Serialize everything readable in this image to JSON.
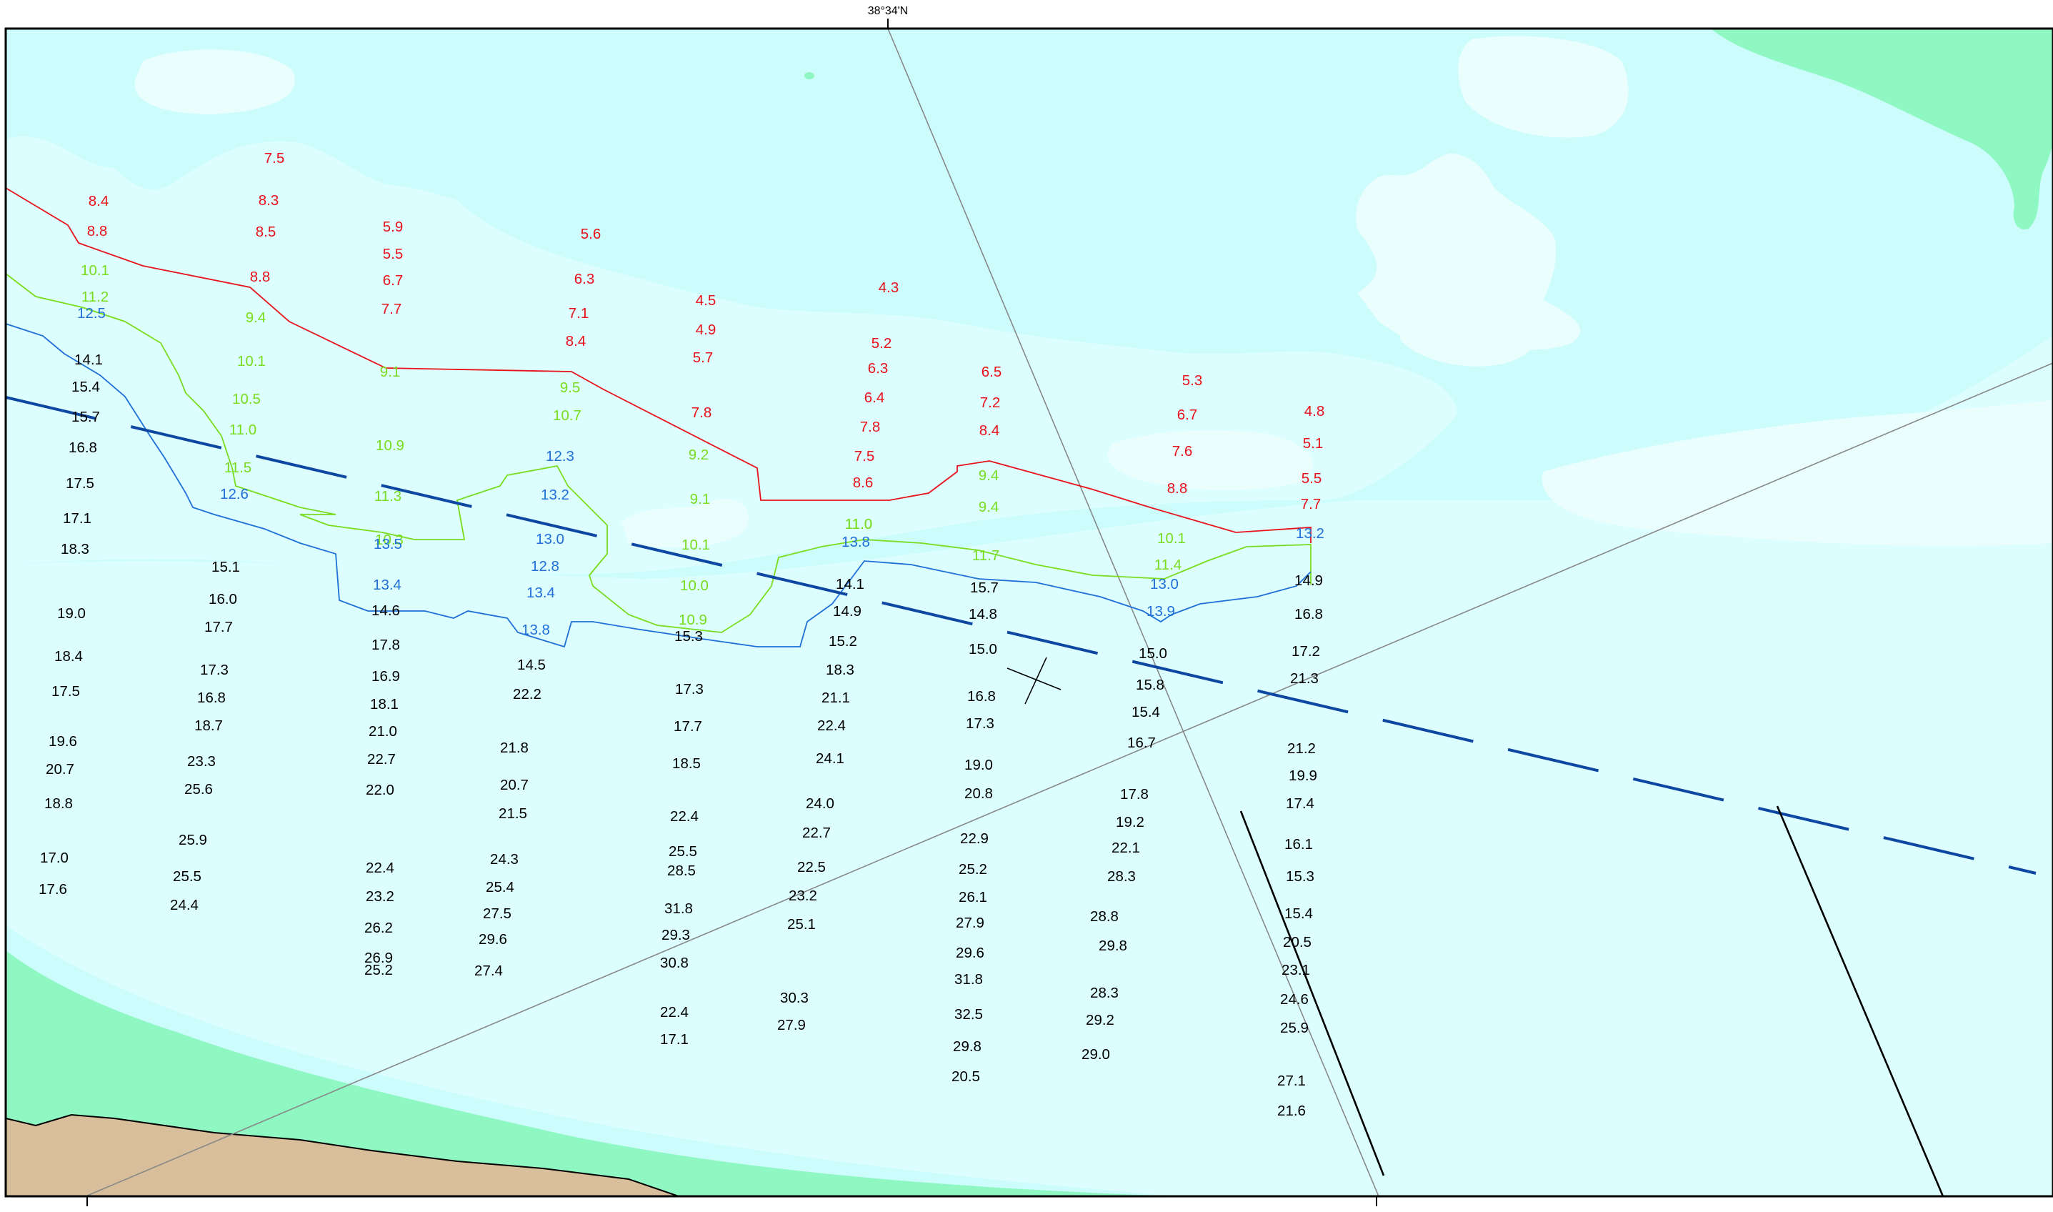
{
  "map": {
    "graticule_top_label": "38°34'N",
    "colors": {
      "deep_water": "#ccfcfc",
      "shallow_water": "#dcfefe",
      "pale_patch": "#eafefe",
      "land_green": "#8ef7c2",
      "land_tan": "#d8be9a",
      "depth_red": "#e8121a",
      "depth_green": "#7adc1e",
      "depth_blue": "#1f6fd8",
      "depth_black": "#000000",
      "route_line": "#0d47a1",
      "grid_line": "#888888"
    },
    "soundings": [
      {
        "t": "7.5",
        "c": "red"
      },
      {
        "t": "8.4",
        "c": "red"
      },
      {
        "t": "8.3",
        "c": "red"
      },
      {
        "t": "8.8",
        "c": "red"
      },
      {
        "t": "8.5",
        "c": "red"
      },
      {
        "t": "5.9",
        "c": "red"
      },
      {
        "t": "5.6",
        "c": "red"
      },
      {
        "t": "5.5",
        "c": "red"
      },
      {
        "t": "8.8",
        "c": "red"
      },
      {
        "t": "6.7",
        "c": "red"
      },
      {
        "t": "6.3",
        "c": "red"
      },
      {
        "t": "4.3",
        "c": "red"
      },
      {
        "t": "4.5",
        "c": "red"
      },
      {
        "t": "7.7",
        "c": "red"
      },
      {
        "t": "7.1",
        "c": "red"
      },
      {
        "t": "4.9",
        "c": "red"
      },
      {
        "t": "8.4",
        "c": "red"
      },
      {
        "t": "5.2",
        "c": "red"
      },
      {
        "t": "5.7",
        "c": "red"
      },
      {
        "t": "6.3",
        "c": "red"
      },
      {
        "t": "6.5",
        "c": "red"
      },
      {
        "t": "5.3",
        "c": "red"
      },
      {
        "t": "6.4",
        "c": "red"
      },
      {
        "t": "7.2",
        "c": "red"
      },
      {
        "t": "4.8",
        "c": "red"
      },
      {
        "t": "7.8",
        "c": "red"
      },
      {
        "t": "6.7",
        "c": "red"
      },
      {
        "t": "7.8",
        "c": "red"
      },
      {
        "t": "8.4",
        "c": "red"
      },
      {
        "t": "5.1",
        "c": "red"
      },
      {
        "t": "7.5",
        "c": "red"
      },
      {
        "t": "7.6",
        "c": "red"
      },
      {
        "t": "8.6",
        "c": "red"
      },
      {
        "t": "5.5",
        "c": "red"
      },
      {
        "t": "8.8",
        "c": "red"
      },
      {
        "t": "7.7",
        "c": "red"
      },
      {
        "t": "10.1",
        "c": "green"
      },
      {
        "t": "11.2",
        "c": "green"
      },
      {
        "t": "9.4",
        "c": "green"
      },
      {
        "t": "10.1",
        "c": "green"
      },
      {
        "t": "9.1",
        "c": "green"
      },
      {
        "t": "9.5",
        "c": "green"
      },
      {
        "t": "10.5",
        "c": "green"
      },
      {
        "t": "10.7",
        "c": "green"
      },
      {
        "t": "9.4",
        "c": "green"
      },
      {
        "t": "11.0",
        "c": "green"
      },
      {
        "t": "10.9",
        "c": "green"
      },
      {
        "t": "9.2",
        "c": "green"
      },
      {
        "t": "11.5",
        "c": "green"
      },
      {
        "t": "9.4",
        "c": "green"
      },
      {
        "t": "11.3",
        "c": "green"
      },
      {
        "t": "9.1",
        "c": "green"
      },
      {
        "t": "10.3",
        "c": "green"
      },
      {
        "t": "11.0",
        "c": "green"
      },
      {
        "t": "11.0",
        "c": "green"
      },
      {
        "t": "10.1",
        "c": "green"
      },
      {
        "t": "10.1",
        "c": "green"
      },
      {
        "t": "11.7",
        "c": "green"
      },
      {
        "t": "11.4",
        "c": "green"
      },
      {
        "t": "10.0",
        "c": "green"
      },
      {
        "t": "10.9",
        "c": "green"
      },
      {
        "t": "12.5",
        "c": "blue"
      },
      {
        "t": "12.3",
        "c": "blue"
      },
      {
        "t": "12.6",
        "c": "blue"
      },
      {
        "t": "13.2",
        "c": "blue"
      },
      {
        "t": "13.0",
        "c": "blue"
      },
      {
        "t": "13.5",
        "c": "blue"
      },
      {
        "t": "13.8",
        "c": "blue"
      },
      {
        "t": "13.2",
        "c": "blue"
      },
      {
        "t": "12.8",
        "c": "blue"
      },
      {
        "t": "13.4",
        "c": "blue"
      },
      {
        "t": "13.0",
        "c": "blue"
      },
      {
        "t": "13.4",
        "c": "blue"
      },
      {
        "t": "13.9",
        "c": "blue"
      },
      {
        "t": "13.8",
        "c": "blue"
      },
      {
        "t": "14.1",
        "c": "black"
      },
      {
        "t": "15.4",
        "c": "black"
      },
      {
        "t": "15.7",
        "c": "black"
      },
      {
        "t": "16.8",
        "c": "black"
      },
      {
        "t": "17.5",
        "c": "black"
      },
      {
        "t": "17.1",
        "c": "black"
      },
      {
        "t": "18.3",
        "c": "black"
      },
      {
        "t": "19.0",
        "c": "black"
      },
      {
        "t": "18.4",
        "c": "black"
      },
      {
        "t": "17.5",
        "c": "black"
      },
      {
        "t": "19.6",
        "c": "black"
      },
      {
        "t": "20.7",
        "c": "black"
      },
      {
        "t": "18.8",
        "c": "black"
      },
      {
        "t": "17.0",
        "c": "black"
      },
      {
        "t": "17.6",
        "c": "black"
      },
      {
        "t": "15.1",
        "c": "black"
      },
      {
        "t": "16.0",
        "c": "black"
      },
      {
        "t": "17.7",
        "c": "black"
      },
      {
        "t": "17.3",
        "c": "black"
      },
      {
        "t": "16.8",
        "c": "black"
      },
      {
        "t": "18.7",
        "c": "black"
      },
      {
        "t": "23.3",
        "c": "black"
      },
      {
        "t": "25.6",
        "c": "black"
      },
      {
        "t": "25.9",
        "c": "black"
      },
      {
        "t": "25.5",
        "c": "black"
      },
      {
        "t": "24.4",
        "c": "black"
      },
      {
        "t": "14.6",
        "c": "black"
      },
      {
        "t": "17.8",
        "c": "black"
      },
      {
        "t": "16.9",
        "c": "black"
      },
      {
        "t": "18.1",
        "c": "black"
      },
      {
        "t": "21.0",
        "c": "black"
      },
      {
        "t": "22.7",
        "c": "black"
      },
      {
        "t": "22.0",
        "c": "black"
      },
      {
        "t": "22.4",
        "c": "black"
      },
      {
        "t": "23.2",
        "c": "black"
      },
      {
        "t": "26.2",
        "c": "black"
      },
      {
        "t": "26.9",
        "c": "black"
      },
      {
        "t": "25.2",
        "c": "black"
      },
      {
        "t": "14.5",
        "c": "black"
      },
      {
        "t": "22.2",
        "c": "black"
      },
      {
        "t": "21.8",
        "c": "black"
      },
      {
        "t": "20.7",
        "c": "black"
      },
      {
        "t": "21.5",
        "c": "black"
      },
      {
        "t": "24.3",
        "c": "black"
      },
      {
        "t": "25.4",
        "c": "black"
      },
      {
        "t": "27.5",
        "c": "black"
      },
      {
        "t": "29.6",
        "c": "black"
      },
      {
        "t": "27.4",
        "c": "black"
      },
      {
        "t": "15.3",
        "c": "black"
      },
      {
        "t": "17.3",
        "c": "black"
      },
      {
        "t": "17.7",
        "c": "black"
      },
      {
        "t": "18.5",
        "c": "black"
      },
      {
        "t": "22.4",
        "c": "black"
      },
      {
        "t": "25.5",
        "c": "black"
      },
      {
        "t": "28.5",
        "c": "black"
      },
      {
        "t": "31.8",
        "c": "black"
      },
      {
        "t": "29.3",
        "c": "black"
      },
      {
        "t": "30.8",
        "c": "black"
      },
      {
        "t": "22.4",
        "c": "black"
      },
      {
        "t": "17.1",
        "c": "black"
      },
      {
        "t": "14.1",
        "c": "black"
      },
      {
        "t": "14.9",
        "c": "black"
      },
      {
        "t": "15.2",
        "c": "black"
      },
      {
        "t": "18.3",
        "c": "black"
      },
      {
        "t": "21.1",
        "c": "black"
      },
      {
        "t": "22.4",
        "c": "black"
      },
      {
        "t": "24.1",
        "c": "black"
      },
      {
        "t": "24.0",
        "c": "black"
      },
      {
        "t": "22.7",
        "c": "black"
      },
      {
        "t": "22.5",
        "c": "black"
      },
      {
        "t": "23.2",
        "c": "black"
      },
      {
        "t": "25.1",
        "c": "black"
      },
      {
        "t": "30.3",
        "c": "black"
      },
      {
        "t": "27.9",
        "c": "black"
      },
      {
        "t": "15.7",
        "c": "black"
      },
      {
        "t": "14.8",
        "c": "black"
      },
      {
        "t": "15.0",
        "c": "black"
      },
      {
        "t": "16.8",
        "c": "black"
      },
      {
        "t": "17.3",
        "c": "black"
      },
      {
        "t": "19.0",
        "c": "black"
      },
      {
        "t": "20.8",
        "c": "black"
      },
      {
        "t": "22.9",
        "c": "black"
      },
      {
        "t": "25.2",
        "c": "black"
      },
      {
        "t": "26.1",
        "c": "black"
      },
      {
        "t": "27.9",
        "c": "black"
      },
      {
        "t": "29.6",
        "c": "black"
      },
      {
        "t": "31.8",
        "c": "black"
      },
      {
        "t": "32.5",
        "c": "black"
      },
      {
        "t": "29.8",
        "c": "black"
      },
      {
        "t": "20.5",
        "c": "black"
      },
      {
        "t": "15.0",
        "c": "black"
      },
      {
        "t": "15.8",
        "c": "black"
      },
      {
        "t": "15.4",
        "c": "black"
      },
      {
        "t": "16.7",
        "c": "black"
      },
      {
        "t": "17.8",
        "c": "black"
      },
      {
        "t": "19.2",
        "c": "black"
      },
      {
        "t": "22.1",
        "c": "black"
      },
      {
        "t": "28.3",
        "c": "black"
      },
      {
        "t": "28.8",
        "c": "black"
      },
      {
        "t": "29.8",
        "c": "black"
      },
      {
        "t": "28.3",
        "c": "black"
      },
      {
        "t": "29.2",
        "c": "black"
      },
      {
        "t": "29.0",
        "c": "black"
      },
      {
        "t": "14.9",
        "c": "black"
      },
      {
        "t": "16.8",
        "c": "black"
      },
      {
        "t": "17.2",
        "c": "black"
      },
      {
        "t": "21.3",
        "c": "black"
      },
      {
        "t": "21.2",
        "c": "black"
      },
      {
        "t": "19.9",
        "c": "black"
      },
      {
        "t": "17.4",
        "c": "black"
      },
      {
        "t": "16.1",
        "c": "black"
      },
      {
        "t": "15.3",
        "c": "black"
      },
      {
        "t": "15.4",
        "c": "black"
      },
      {
        "t": "20.5",
        "c": "black"
      },
      {
        "t": "23.1",
        "c": "black"
      },
      {
        "t": "24.6",
        "c": "black"
      },
      {
        "t": "25.9",
        "c": "black"
      },
      {
        "t": "27.1",
        "c": "black"
      },
      {
        "t": "21.6",
        "c": "black"
      }
    ]
  }
}
